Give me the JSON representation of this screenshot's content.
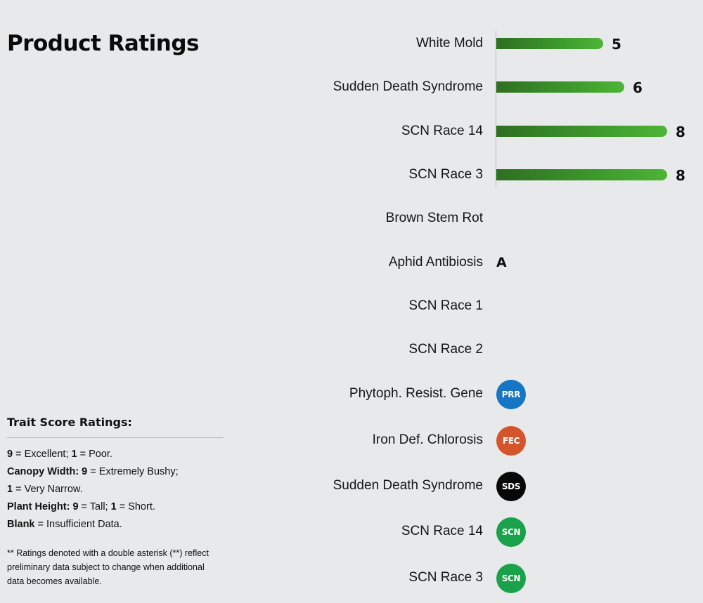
{
  "title": "Product Ratings",
  "ratings": {
    "scaled": [
      {
        "label": "White Mold",
        "value": 5
      },
      {
        "label": "Sudden Death Syndrome",
        "value": 6
      },
      {
        "label": "SCN Race 14",
        "value": 8
      },
      {
        "label": "SCN Race 3",
        "value": 8
      }
    ],
    "scale_max": 9,
    "text_rows": [
      {
        "label": "Brown Stem Rot",
        "value": ""
      },
      {
        "label": "Aphid Antibiosis",
        "value": "A"
      },
      {
        "label": "SCN Race 1",
        "value": ""
      },
      {
        "label": "SCN Race 2",
        "value": ""
      }
    ],
    "badge_rows": [
      {
        "label": "Phytoph. Resist. Gene",
        "badge": "PRR",
        "color": "#1676c4"
      },
      {
        "label": "Iron Def. Chlorosis",
        "badge": "FEC",
        "color": "#d4552c"
      },
      {
        "label": "Sudden Death Syndrome",
        "badge": "SDS",
        "color": "#080808"
      },
      {
        "label": "SCN Race 14",
        "badge": "SCN",
        "color": "#1aa24a"
      },
      {
        "label": "SCN Race 3",
        "badge": "SCN",
        "color": "#1aa24a"
      }
    ]
  },
  "legend": {
    "title": "Trait Score Ratings:",
    "line1_b1": "9",
    "line1_t1": " = Excellent; ",
    "line1_b2": "1",
    "line1_t2": " = Poor.",
    "line2_b1": "Canopy Width: 9",
    "line2_t1": " = Extremely Bushy;",
    "line3_b1": "1",
    "line3_t1": " = Very Narrow.",
    "line4_b1": "Plant Height: 9",
    "line4_t1": " = Tall; ",
    "line4_b2": "1",
    "line4_t2": " = Short.",
    "line5_b1": "Blank",
    "line5_t1": " = Insufficient Data.",
    "note": "** Ratings denoted with a double asterisk (**) reflect preliminary data subject to change when additional data becomes available."
  }
}
